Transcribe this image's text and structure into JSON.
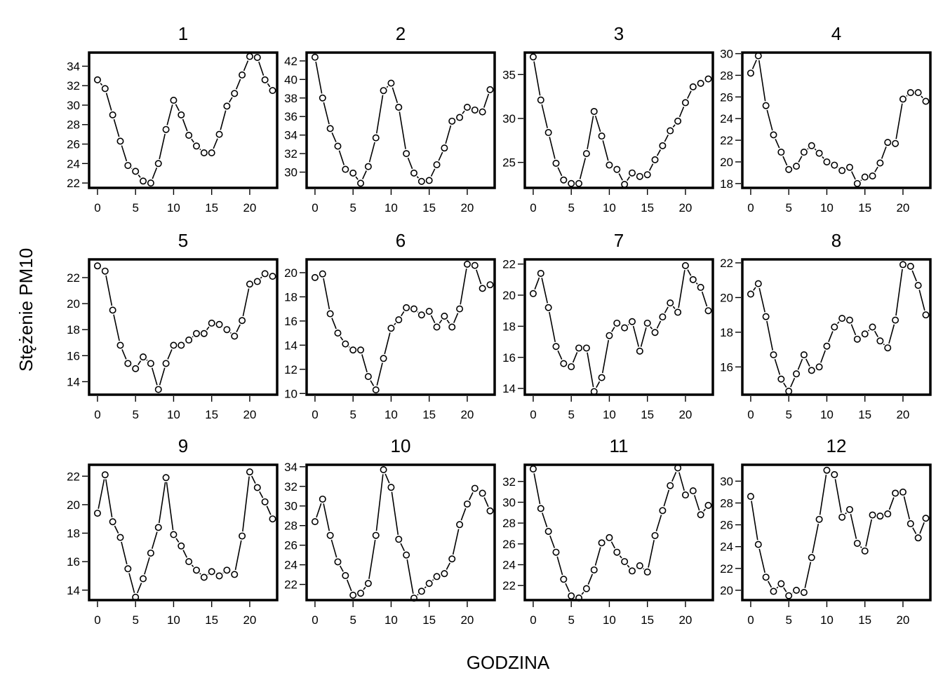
{
  "figure": {
    "ylabel": "Stężenie PM10",
    "xlabel": "GODZINA"
  },
  "chart_data": [
    {
      "type": "line",
      "title": "1",
      "x": [
        0,
        1,
        2,
        3,
        4,
        5,
        6,
        7,
        8,
        9,
        10,
        11,
        12,
        13,
        14,
        15,
        16,
        17,
        18,
        19,
        20,
        21,
        22,
        23
      ],
      "values": [
        32.6,
        31.7,
        29.0,
        26.3,
        23.8,
        23.2,
        22.2,
        22.0,
        24.0,
        27.5,
        30.5,
        29.0,
        26.9,
        25.8,
        25.1,
        25.1,
        27.0,
        29.9,
        31.2,
        33.1,
        35.0,
        34.9,
        32.6,
        31.5
      ],
      "xticks": [
        0,
        5,
        10,
        15,
        20
      ],
      "yticks": [
        22,
        24,
        26,
        28,
        30,
        32,
        34
      ],
      "xlim": [
        -1.1,
        23.6
      ],
      "ylim": [
        21.5,
        35.4
      ]
    },
    {
      "type": "line",
      "title": "2",
      "x": [
        0,
        1,
        2,
        3,
        4,
        5,
        6,
        7,
        8,
        9,
        10,
        11,
        12,
        13,
        14,
        15,
        16,
        17,
        18,
        19,
        20,
        21,
        22,
        23
      ],
      "values": [
        42.4,
        38.0,
        34.7,
        32.8,
        30.3,
        29.9,
        28.8,
        30.6,
        33.7,
        38.8,
        39.6,
        37.0,
        32.0,
        29.9,
        29.0,
        29.1,
        30.8,
        32.6,
        35.5,
        35.9,
        37.0,
        36.7,
        36.5,
        38.9
      ],
      "xticks": [
        0,
        5,
        10,
        15,
        20
      ],
      "yticks": [
        30,
        32,
        34,
        36,
        38,
        40,
        42
      ],
      "xlim": [
        -1.1,
        23.6
      ],
      "ylim": [
        28.3,
        42.9
      ]
    },
    {
      "type": "line",
      "title": "3",
      "x": [
        0,
        1,
        2,
        3,
        4,
        5,
        6,
        7,
        8,
        9,
        10,
        11,
        12,
        13,
        14,
        15,
        16,
        17,
        18,
        19,
        20,
        21,
        22,
        23
      ],
      "values": [
        37.0,
        32.1,
        28.4,
        24.9,
        23.0,
        22.6,
        22.6,
        26.0,
        30.8,
        28.0,
        24.7,
        24.2,
        22.5,
        23.8,
        23.4,
        23.6,
        25.3,
        26.9,
        28.6,
        29.7,
        31.8,
        33.6,
        34.0,
        34.5
      ],
      "xticks": [
        0,
        5,
        10,
        15,
        20
      ],
      "yticks": [
        25,
        30,
        35
      ],
      "xlim": [
        -1.1,
        23.6
      ],
      "ylim": [
        22.1,
        37.5
      ]
    },
    {
      "type": "line",
      "title": "4",
      "x": [
        0,
        1,
        2,
        3,
        4,
        5,
        6,
        7,
        8,
        9,
        10,
        11,
        12,
        13,
        14,
        15,
        16,
        17,
        18,
        19,
        20,
        21,
        22,
        23
      ],
      "values": [
        28.2,
        29.8,
        25.2,
        22.5,
        20.9,
        19.3,
        19.6,
        20.9,
        21.5,
        20.8,
        20.0,
        19.7,
        19.2,
        19.5,
        18.0,
        18.6,
        18.7,
        19.9,
        21.8,
        21.7,
        25.8,
        26.4,
        26.4,
        25.6
      ],
      "xticks": [
        0,
        5,
        10,
        15,
        20
      ],
      "yticks": [
        18,
        20,
        22,
        24,
        26,
        28,
        30
      ],
      "xlim": [
        -1.1,
        23.6
      ],
      "ylim": [
        17.6,
        30.1
      ]
    },
    {
      "type": "line",
      "title": "5",
      "x": [
        0,
        1,
        2,
        3,
        4,
        5,
        6,
        7,
        8,
        9,
        10,
        11,
        12,
        13,
        14,
        15,
        16,
        17,
        18,
        19,
        20,
        21,
        22,
        23
      ],
      "values": [
        22.9,
        22.5,
        19.5,
        16.8,
        15.4,
        15.0,
        15.9,
        15.4,
        13.4,
        15.4,
        16.8,
        16.8,
        17.2,
        17.7,
        17.7,
        18.5,
        18.4,
        18.0,
        17.5,
        18.7,
        21.5,
        21.7,
        22.3,
        22.1
      ],
      "xticks": [
        0,
        5,
        10,
        15,
        20
      ],
      "yticks": [
        14,
        16,
        18,
        20,
        22
      ],
      "xlim": [
        -1.1,
        23.6
      ],
      "ylim": [
        13.0,
        23.4
      ]
    },
    {
      "type": "line",
      "title": "6",
      "x": [
        0,
        1,
        2,
        3,
        4,
        5,
        6,
        7,
        8,
        9,
        10,
        11,
        12,
        13,
        14,
        15,
        16,
        17,
        18,
        19,
        20,
        21,
        22,
        23
      ],
      "values": [
        19.6,
        19.9,
        16.6,
        15.0,
        14.1,
        13.6,
        13.6,
        11.4,
        10.3,
        12.9,
        15.4,
        16.1,
        17.1,
        17.0,
        16.5,
        16.8,
        15.5,
        16.4,
        15.5,
        17.0,
        20.7,
        20.6,
        18.7,
        19.0
      ],
      "xticks": [
        0,
        5,
        10,
        15,
        20
      ],
      "yticks": [
        10,
        12,
        14,
        16,
        18,
        20
      ],
      "xlim": [
        -1.1,
        23.6
      ],
      "ylim": [
        9.9,
        21.1
      ]
    },
    {
      "type": "line",
      "title": "7",
      "x": [
        0,
        1,
        2,
        3,
        4,
        5,
        6,
        7,
        8,
        9,
        10,
        11,
        12,
        13,
        14,
        15,
        16,
        17,
        18,
        19,
        20,
        21,
        22,
        23
      ],
      "values": [
        20.1,
        21.4,
        19.2,
        16.7,
        15.6,
        15.4,
        16.6,
        16.6,
        13.8,
        14.7,
        17.4,
        18.2,
        17.9,
        18.3,
        16.4,
        18.2,
        17.6,
        18.6,
        19.5,
        18.9,
        21.9,
        21.0,
        20.5,
        19.0
      ],
      "xticks": [
        0,
        5,
        10,
        15,
        20
      ],
      "yticks": [
        14,
        16,
        18,
        20,
        22
      ],
      "xlim": [
        -1.1,
        23.6
      ],
      "ylim": [
        13.6,
        22.3
      ]
    },
    {
      "type": "line",
      "title": "8",
      "x": [
        0,
        1,
        2,
        3,
        4,
        5,
        6,
        7,
        8,
        9,
        10,
        11,
        12,
        13,
        14,
        15,
        16,
        17,
        18,
        19,
        20,
        21,
        22,
        23
      ],
      "values": [
        20.2,
        20.8,
        18.9,
        16.7,
        15.3,
        14.6,
        15.6,
        16.7,
        15.8,
        16.0,
        17.2,
        18.3,
        18.8,
        18.7,
        17.6,
        17.9,
        18.3,
        17.5,
        17.1,
        18.7,
        21.9,
        21.8,
        20.7,
        19.0
      ],
      "xticks": [
        0,
        5,
        10,
        15,
        20
      ],
      "yticks": [
        16,
        18,
        20,
        22
      ],
      "xlim": [
        -1.1,
        23.6
      ],
      "ylim": [
        14.4,
        22.2
      ]
    },
    {
      "type": "line",
      "title": "9",
      "x": [
        0,
        1,
        2,
        3,
        4,
        5,
        6,
        7,
        8,
        9,
        10,
        11,
        12,
        13,
        14,
        15,
        16,
        17,
        18,
        19,
        20,
        21,
        22,
        23
      ],
      "values": [
        19.4,
        22.1,
        18.8,
        17.7,
        15.5,
        13.5,
        14.8,
        16.6,
        18.4,
        21.9,
        17.9,
        17.1,
        16.0,
        15.4,
        14.9,
        15.3,
        15.0,
        15.4,
        15.1,
        17.8,
        22.3,
        21.2,
        20.2,
        19.0
      ],
      "xticks": [
        0,
        5,
        10,
        15,
        20
      ],
      "yticks": [
        14,
        16,
        18,
        20,
        22
      ],
      "xlim": [
        -1.1,
        23.6
      ],
      "ylim": [
        13.3,
        22.8
      ]
    },
    {
      "type": "line",
      "title": "10",
      "x": [
        0,
        1,
        2,
        3,
        4,
        5,
        6,
        7,
        8,
        9,
        10,
        11,
        12,
        13,
        14,
        15,
        16,
        17,
        18,
        19,
        20,
        21,
        22,
        23
      ],
      "values": [
        28.4,
        30.7,
        27.0,
        24.3,
        22.9,
        20.9,
        21.1,
        22.1,
        27.0,
        33.7,
        31.9,
        26.6,
        25.0,
        20.6,
        21.3,
        22.1,
        22.8,
        23.1,
        24.6,
        28.1,
        30.2,
        31.8,
        31.3,
        29.5
      ],
      "xticks": [
        0,
        5,
        10,
        15,
        20
      ],
      "yticks": [
        22,
        24,
        26,
        28,
        30,
        32,
        34
      ],
      "xlim": [
        -1.1,
        23.6
      ],
      "ylim": [
        20.4,
        34.2
      ]
    },
    {
      "type": "line",
      "title": "11",
      "x": [
        0,
        1,
        2,
        3,
        4,
        5,
        6,
        7,
        8,
        9,
        10,
        11,
        12,
        13,
        14,
        15,
        16,
        17,
        18,
        19,
        20,
        21,
        22,
        23
      ],
      "values": [
        33.2,
        29.4,
        27.2,
        25.2,
        22.6,
        21.0,
        20.8,
        21.7,
        23.5,
        26.1,
        26.6,
        25.2,
        24.3,
        23.4,
        23.9,
        23.3,
        26.8,
        29.2,
        31.6,
        33.3,
        30.7,
        31.1,
        28.8,
        29.7
      ],
      "xticks": [
        0,
        5,
        10,
        15,
        20
      ],
      "yticks": [
        22,
        24,
        26,
        28,
        30,
        32
      ],
      "xlim": [
        -1.1,
        23.6
      ],
      "ylim": [
        20.6,
        33.6
      ]
    },
    {
      "type": "line",
      "title": "12",
      "x": [
        0,
        1,
        2,
        3,
        4,
        5,
        6,
        7,
        8,
        9,
        10,
        11,
        12,
        13,
        14,
        15,
        16,
        17,
        18,
        19,
        20,
        21,
        22,
        23
      ],
      "values": [
        28.6,
        24.2,
        21.2,
        19.9,
        20.6,
        19.5,
        20.0,
        19.8,
        23.0,
        26.5,
        31.0,
        30.6,
        26.7,
        27.4,
        24.3,
        23.6,
        26.9,
        26.8,
        27.0,
        28.9,
        29.0,
        26.1,
        24.8,
        26.6
      ],
      "xticks": [
        0,
        5,
        10,
        15,
        20
      ],
      "yticks": [
        20,
        22,
        24,
        26,
        28,
        30
      ],
      "xlim": [
        -1.1,
        23.6
      ],
      "ylim": [
        19.1,
        31.5
      ]
    }
  ]
}
